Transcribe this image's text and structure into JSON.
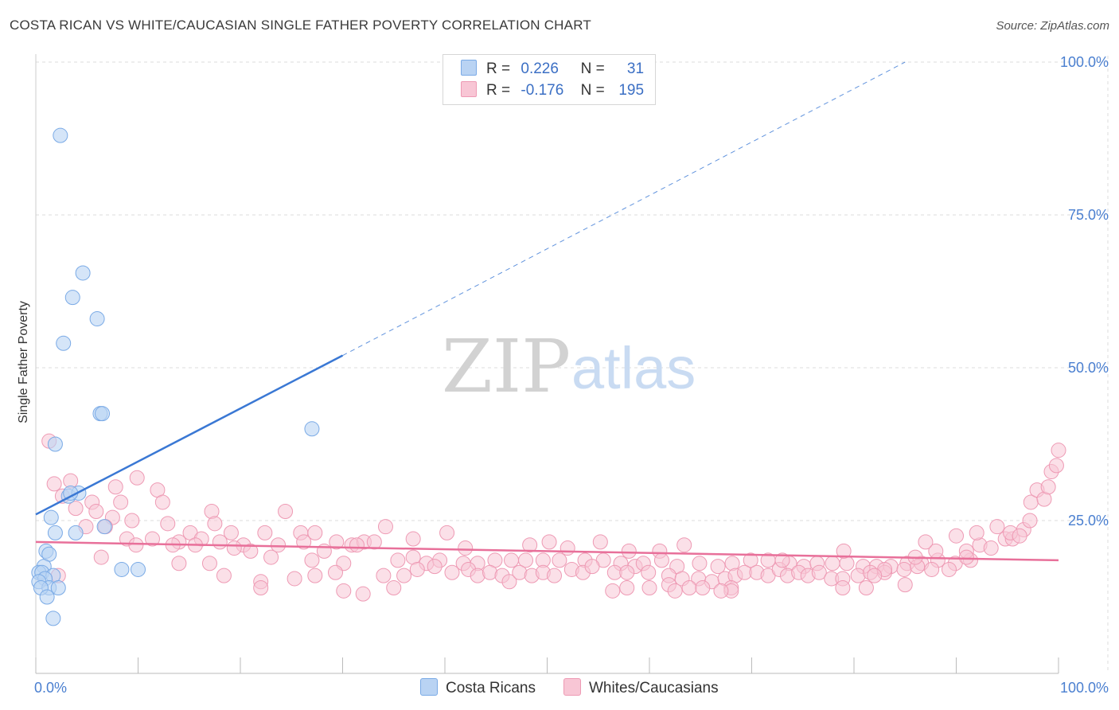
{
  "title": "COSTA RICAN VS WHITE/CAUCASIAN SINGLE FATHER POVERTY CORRELATION CHART",
  "source": "Source: ZipAtlas.com",
  "colors": {
    "blue_fill": "#b9d3f3",
    "blue_stroke": "#7aaae6",
    "blue_line": "#3a78d4",
    "pink_fill": "#f8c6d5",
    "pink_stroke": "#ee9ab4",
    "pink_line": "#e8709a",
    "tick_text": "#4a7fd0",
    "grid": "#dddddd"
  },
  "legend": {
    "r_label": "R =",
    "n_label": "N =",
    "blue_r": "0.226",
    "blue_n": "31",
    "pink_r": "-0.176",
    "pink_n": "195"
  },
  "bottom_legend": {
    "blue": "Costa Ricans",
    "pink": "Whites/Caucasians"
  },
  "watermark": {
    "zip": "ZIP",
    "atlas": "atlas"
  },
  "chart_data": {
    "type": "scatter",
    "title": "COSTA RICAN VS WHITE/CAUCASIAN SINGLE FATHER POVERTY CORRELATION CHART",
    "xlabel": "",
    "ylabel": "Single Father Poverty",
    "xlim": [
      0,
      100
    ],
    "ylim": [
      0,
      100
    ],
    "x_tick_labels": [
      "0.0%",
      "100.0%"
    ],
    "y_ticks": [
      25,
      50,
      75,
      100
    ],
    "y_tick_labels": [
      "25.0%",
      "50.0%",
      "75.0%",
      "100.0%"
    ],
    "grid": true,
    "series": [
      {
        "name": "Costa Ricans",
        "r": 0.226,
        "n": 31,
        "trend": {
          "x0": 0,
          "y0": 26.0,
          "x1": 30,
          "y1": 52.0,
          "extended_to_x": 85,
          "extended_to_y": 100
        },
        "points": [
          [
            2.4,
            88.0
          ],
          [
            4.6,
            65.5
          ],
          [
            3.6,
            61.5
          ],
          [
            6.0,
            58.0
          ],
          [
            2.7,
            54.0
          ],
          [
            6.3,
            42.5
          ],
          [
            6.5,
            42.5
          ],
          [
            27.0,
            40.0
          ],
          [
            1.9,
            37.5
          ],
          [
            3.2,
            29.0
          ],
          [
            4.2,
            29.5
          ],
          [
            3.4,
            29.5
          ],
          [
            1.5,
            25.5
          ],
          [
            6.7,
            24.0
          ],
          [
            1.9,
            23.0
          ],
          [
            3.9,
            23.0
          ],
          [
            1.0,
            20.0
          ],
          [
            1.3,
            19.5
          ],
          [
            0.8,
            17.5
          ],
          [
            8.4,
            17.0
          ],
          [
            10.0,
            17.0
          ],
          [
            0.3,
            16.5
          ],
          [
            0.6,
            16.5
          ],
          [
            1.7,
            16.0
          ],
          [
            0.9,
            15.5
          ],
          [
            0.3,
            15.0
          ],
          [
            1.3,
            14.0
          ],
          [
            0.5,
            14.0
          ],
          [
            2.2,
            14.0
          ],
          [
            1.1,
            12.5
          ],
          [
            1.7,
            9.0
          ]
        ]
      },
      {
        "name": "Whites/Caucasians",
        "r": -0.176,
        "n": 195,
        "trend": {
          "x0": 0,
          "y0": 21.5,
          "x1": 100,
          "y1": 18.5
        },
        "points": [
          [
            1.3,
            38.0
          ],
          [
            9.9,
            32.0
          ],
          [
            1.8,
            31.0
          ],
          [
            3.4,
            31.5
          ],
          [
            7.8,
            30.5
          ],
          [
            11.9,
            30.0
          ],
          [
            2.6,
            29.0
          ],
          [
            5.5,
            28.0
          ],
          [
            8.3,
            28.0
          ],
          [
            12.4,
            28.0
          ],
          [
            3.9,
            27.0
          ],
          [
            5.9,
            26.5
          ],
          [
            17.2,
            26.5
          ],
          [
            24.4,
            26.5
          ],
          [
            7.5,
            25.5
          ],
          [
            9.4,
            25.0
          ],
          [
            12.9,
            24.5
          ],
          [
            17.5,
            24.5
          ],
          [
            4.9,
            24.0
          ],
          [
            6.8,
            24.0
          ],
          [
            34.2,
            24.0
          ],
          [
            15.1,
            23.0
          ],
          [
            19.1,
            23.0
          ],
          [
            22.4,
            23.0
          ],
          [
            25.9,
            23.0
          ],
          [
            8.9,
            22.0
          ],
          [
            11.4,
            22.0
          ],
          [
            27.3,
            23.0
          ],
          [
            16.2,
            22.0
          ],
          [
            14.0,
            21.5
          ],
          [
            18.0,
            21.5
          ],
          [
            20.3,
            21.0
          ],
          [
            23.7,
            21.0
          ],
          [
            26.2,
            21.5
          ],
          [
            29.4,
            21.5
          ],
          [
            30.9,
            21.0
          ],
          [
            32.1,
            21.5
          ],
          [
            9.8,
            21.0
          ],
          [
            13.4,
            21.0
          ],
          [
            15.6,
            21.0
          ],
          [
            19.4,
            20.5
          ],
          [
            21.0,
            20.0
          ],
          [
            28.2,
            20.0
          ],
          [
            31.4,
            21.0
          ],
          [
            33.1,
            21.5
          ],
          [
            36.9,
            22.0
          ],
          [
            40.2,
            23.0
          ],
          [
            42.0,
            20.5
          ],
          [
            48.3,
            21.0
          ],
          [
            50.2,
            21.5
          ],
          [
            52.0,
            20.5
          ],
          [
            55.2,
            21.5
          ],
          [
            58.0,
            20.0
          ],
          [
            61.0,
            20.0
          ],
          [
            63.4,
            21.0
          ],
          [
            6.4,
            19.0
          ],
          [
            17.0,
            18.0
          ],
          [
            23.0,
            19.0
          ],
          [
            27.0,
            18.5
          ],
          [
            30.1,
            18.0
          ],
          [
            35.4,
            18.5
          ],
          [
            36.9,
            19.0
          ],
          [
            38.2,
            18.0
          ],
          [
            39.5,
            18.5
          ],
          [
            41.8,
            18.0
          ],
          [
            43.2,
            18.0
          ],
          [
            44.9,
            18.5
          ],
          [
            46.5,
            18.5
          ],
          [
            47.9,
            18.5
          ],
          [
            49.6,
            18.5
          ],
          [
            51.2,
            18.5
          ],
          [
            53.7,
            18.5
          ],
          [
            55.5,
            18.5
          ],
          [
            57.2,
            18.0
          ],
          [
            58.6,
            17.5
          ],
          [
            59.4,
            18.0
          ],
          [
            61.2,
            18.5
          ],
          [
            62.7,
            17.5
          ],
          [
            64.9,
            18.0
          ],
          [
            66.7,
            17.5
          ],
          [
            68.1,
            18.0
          ],
          [
            69.9,
            18.5
          ],
          [
            71.6,
            18.5
          ],
          [
            73.7,
            18.0
          ],
          [
            75.1,
            17.5
          ],
          [
            76.4,
            18.0
          ],
          [
            77.9,
            18.0
          ],
          [
            79.3,
            18.0
          ],
          [
            80.9,
            17.5
          ],
          [
            82.2,
            17.5
          ],
          [
            83.6,
            17.5
          ],
          [
            85.2,
            18.0
          ],
          [
            86.6,
            18.0
          ],
          [
            88.2,
            18.5
          ],
          [
            89.9,
            18.0
          ],
          [
            91.4,
            18.5
          ],
          [
            2.2,
            16.0
          ],
          [
            18.4,
            16.0
          ],
          [
            22.0,
            15.0
          ],
          [
            25.3,
            15.5
          ],
          [
            27.3,
            16.0
          ],
          [
            29.3,
            16.5
          ],
          [
            34.0,
            16.0
          ],
          [
            36.0,
            16.0
          ],
          [
            37.3,
            17.0
          ],
          [
            39.0,
            17.5
          ],
          [
            40.7,
            16.5
          ],
          [
            42.3,
            17.0
          ],
          [
            43.2,
            16.0
          ],
          [
            44.4,
            16.5
          ],
          [
            45.6,
            16.0
          ],
          [
            46.3,
            15.0
          ],
          [
            47.3,
            16.5
          ],
          [
            48.5,
            16.0
          ],
          [
            49.6,
            16.5
          ],
          [
            50.7,
            16.0
          ],
          [
            52.4,
            17.0
          ],
          [
            53.5,
            16.5
          ],
          [
            54.4,
            17.5
          ],
          [
            56.6,
            16.5
          ],
          [
            57.8,
            16.5
          ],
          [
            59.9,
            16.5
          ],
          [
            61.9,
            16.0
          ],
          [
            63.2,
            15.5
          ],
          [
            64.8,
            15.5
          ],
          [
            66.1,
            15.0
          ],
          [
            67.4,
            15.5
          ],
          [
            68.4,
            16.0
          ],
          [
            69.3,
            16.5
          ],
          [
            70.5,
            16.5
          ],
          [
            71.6,
            16.0
          ],
          [
            72.7,
            17.0
          ],
          [
            73.5,
            16.0
          ],
          [
            74.6,
            16.5
          ],
          [
            75.5,
            16.0
          ],
          [
            76.6,
            16.5
          ],
          [
            77.8,
            15.5
          ],
          [
            78.9,
            15.5
          ],
          [
            80.4,
            16.0
          ],
          [
            81.6,
            16.5
          ],
          [
            83.0,
            16.5
          ],
          [
            84.9,
            17.0
          ],
          [
            86.2,
            17.5
          ],
          [
            87.6,
            17.0
          ],
          [
            89.3,
            17.0
          ],
          [
            22.0,
            14.0
          ],
          [
            30.1,
            13.5
          ],
          [
            32.0,
            13.0
          ],
          [
            35.0,
            14.0
          ],
          [
            56.4,
            13.5
          ],
          [
            57.8,
            14.0
          ],
          [
            60.0,
            14.0
          ],
          [
            61.9,
            14.5
          ],
          [
            62.5,
            13.5
          ],
          [
            63.9,
            14.0
          ],
          [
            65.2,
            14.0
          ],
          [
            68.0,
            14.0
          ],
          [
            78.9,
            14.0
          ],
          [
            81.2,
            14.0
          ],
          [
            85.0,
            14.5
          ],
          [
            68.0,
            13.5
          ],
          [
            67.0,
            13.5
          ],
          [
            91.0,
            20.0
          ],
          [
            92.3,
            21.0
          ],
          [
            93.4,
            20.5
          ],
          [
            94.8,
            22.0
          ],
          [
            95.5,
            22.0
          ],
          [
            96.6,
            23.5
          ],
          [
            97.2,
            25.0
          ],
          [
            97.3,
            28.0
          ],
          [
            97.9,
            30.0
          ],
          [
            98.6,
            28.5
          ],
          [
            99.0,
            30.5
          ],
          [
            99.3,
            33.0
          ],
          [
            99.8,
            34.0
          ],
          [
            100.0,
            36.5
          ],
          [
            94.0,
            24.0
          ],
          [
            92.0,
            23.0
          ],
          [
            88.0,
            20.0
          ],
          [
            91.0,
            19.0
          ],
          [
            79.0,
            20.0
          ],
          [
            73.0,
            18.5
          ],
          [
            83.0,
            17.0
          ],
          [
            86.0,
            19.0
          ],
          [
            90.0,
            22.5
          ],
          [
            87.0,
            21.5
          ],
          [
            95.3,
            23.0
          ],
          [
            96.2,
            22.5
          ],
          [
            82.0,
            16.0
          ],
          [
            14.0,
            18.0
          ]
        ]
      }
    ]
  }
}
